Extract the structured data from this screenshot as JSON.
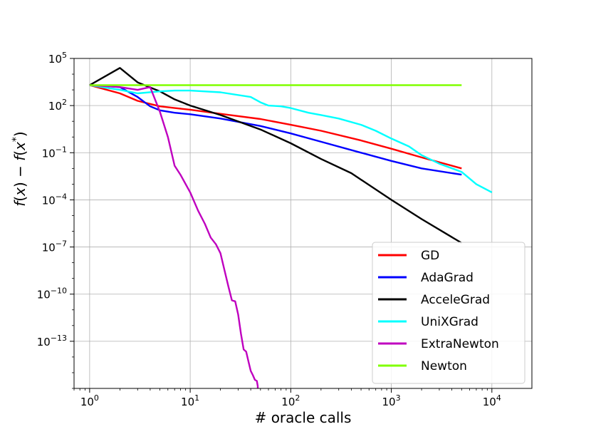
{
  "chart_data": {
    "type": "line",
    "title": "",
    "xlabel": "# oracle calls",
    "ylabel": "f(x) − f(x*)",
    "x_scale": "log",
    "y_scale": "log",
    "xlim": [
      0.7,
      25000
    ],
    "ylim": [
      1e-16,
      100000.0
    ],
    "x_ticks": [
      {
        "value": 1,
        "mant": "10",
        "exp": "0"
      },
      {
        "value": 10,
        "mant": "10",
        "exp": "1"
      },
      {
        "value": 100,
        "mant": "10",
        "exp": "2"
      },
      {
        "value": 1000,
        "mant": "10",
        "exp": "3"
      },
      {
        "value": 10000,
        "mant": "10",
        "exp": "4"
      }
    ],
    "y_ticks": [
      {
        "value": 100000.0,
        "mant": "10",
        "exp": "5"
      },
      {
        "value": 100.0,
        "mant": "10",
        "exp": "2"
      },
      {
        "value": 0.1,
        "mant": "10",
        "exp": "−1"
      },
      {
        "value": 0.0001,
        "mant": "10",
        "exp": "−4"
      },
      {
        "value": 1e-07,
        "mant": "10",
        "exp": "−7"
      },
      {
        "value": 1e-10,
        "mant": "10",
        "exp": "−10"
      },
      {
        "value": 1e-13,
        "mant": "10",
        "exp": "−13"
      }
    ],
    "grid": true,
    "legend_position": "lower-right",
    "series": [
      {
        "name": "GD",
        "color": "#ff0000",
        "x": [
          1,
          2,
          3,
          5,
          7,
          10,
          20,
          50,
          100,
          200,
          500,
          1000,
          2000,
          5000
        ],
        "y": [
          2000,
          600,
          200,
          90,
          70,
          55,
          30,
          14,
          6,
          2.5,
          0.6,
          0.18,
          0.05,
          0.01
        ]
      },
      {
        "name": "AdaGrad",
        "color": "#0000ff",
        "x": [
          1,
          2,
          3,
          4,
          5,
          7,
          10,
          20,
          50,
          100,
          200,
          500,
          1000,
          2000,
          5000
        ],
        "y": [
          2000,
          1500,
          350,
          90,
          50,
          35,
          28,
          15,
          5,
          1.7,
          0.5,
          0.1,
          0.03,
          0.01,
          0.004
        ]
      },
      {
        "name": "AcceleGrad",
        "color": "#000000",
        "x": [
          1,
          2,
          3,
          5,
          7,
          10,
          20,
          50,
          100,
          200,
          400,
          1000,
          2000,
          5000
        ],
        "y": [
          2000,
          25000,
          3000,
          800,
          250,
          100,
          25,
          3,
          0.4,
          0.04,
          0.005,
          0.0001,
          6e-06,
          1.8e-07
        ]
      },
      {
        "name": "UniXGrad",
        "color": "#00ffff",
        "x": [
          1,
          2,
          3,
          5,
          7,
          10,
          20,
          40,
          50,
          60,
          80,
          100,
          150,
          200,
          300,
          500,
          700,
          1000,
          1500,
          2000,
          3000,
          5000,
          7000,
          10000
        ],
        "y": [
          2000,
          1000,
          600,
          800,
          900,
          900,
          700,
          350,
          160,
          100,
          90,
          70,
          35,
          25,
          15,
          6,
          2.5,
          0.8,
          0.25,
          0.07,
          0.02,
          0.006,
          0.001,
          0.0003
        ]
      },
      {
        "name": "ExtraNewton",
        "color": "#bf00bf",
        "x": [
          1,
          2,
          3,
          4,
          5,
          6,
          7,
          8,
          10,
          12,
          14,
          16,
          18,
          20,
          22,
          24,
          26,
          28,
          30,
          32,
          34,
          36,
          38,
          40,
          42,
          44,
          46,
          47,
          47.5
        ],
        "y": [
          2000,
          1500,
          1000,
          1500,
          40,
          1,
          0.015,
          0.004,
          0.0003,
          2e-05,
          3e-06,
          4e-07,
          1.5e-07,
          4e-08,
          3e-09,
          3e-10,
          4e-11,
          3.5e-11,
          5e-12,
          3e-13,
          3e-14,
          2.2e-14,
          5e-15,
          1.3e-15,
          7e-16,
          3.5e-16,
          3e-16,
          1.4e-16,
          1e-18
        ]
      },
      {
        "name": "Newton",
        "color": "#80ff00",
        "x": [
          1,
          5000
        ],
        "y": [
          2000,
          2000
        ]
      }
    ]
  }
}
